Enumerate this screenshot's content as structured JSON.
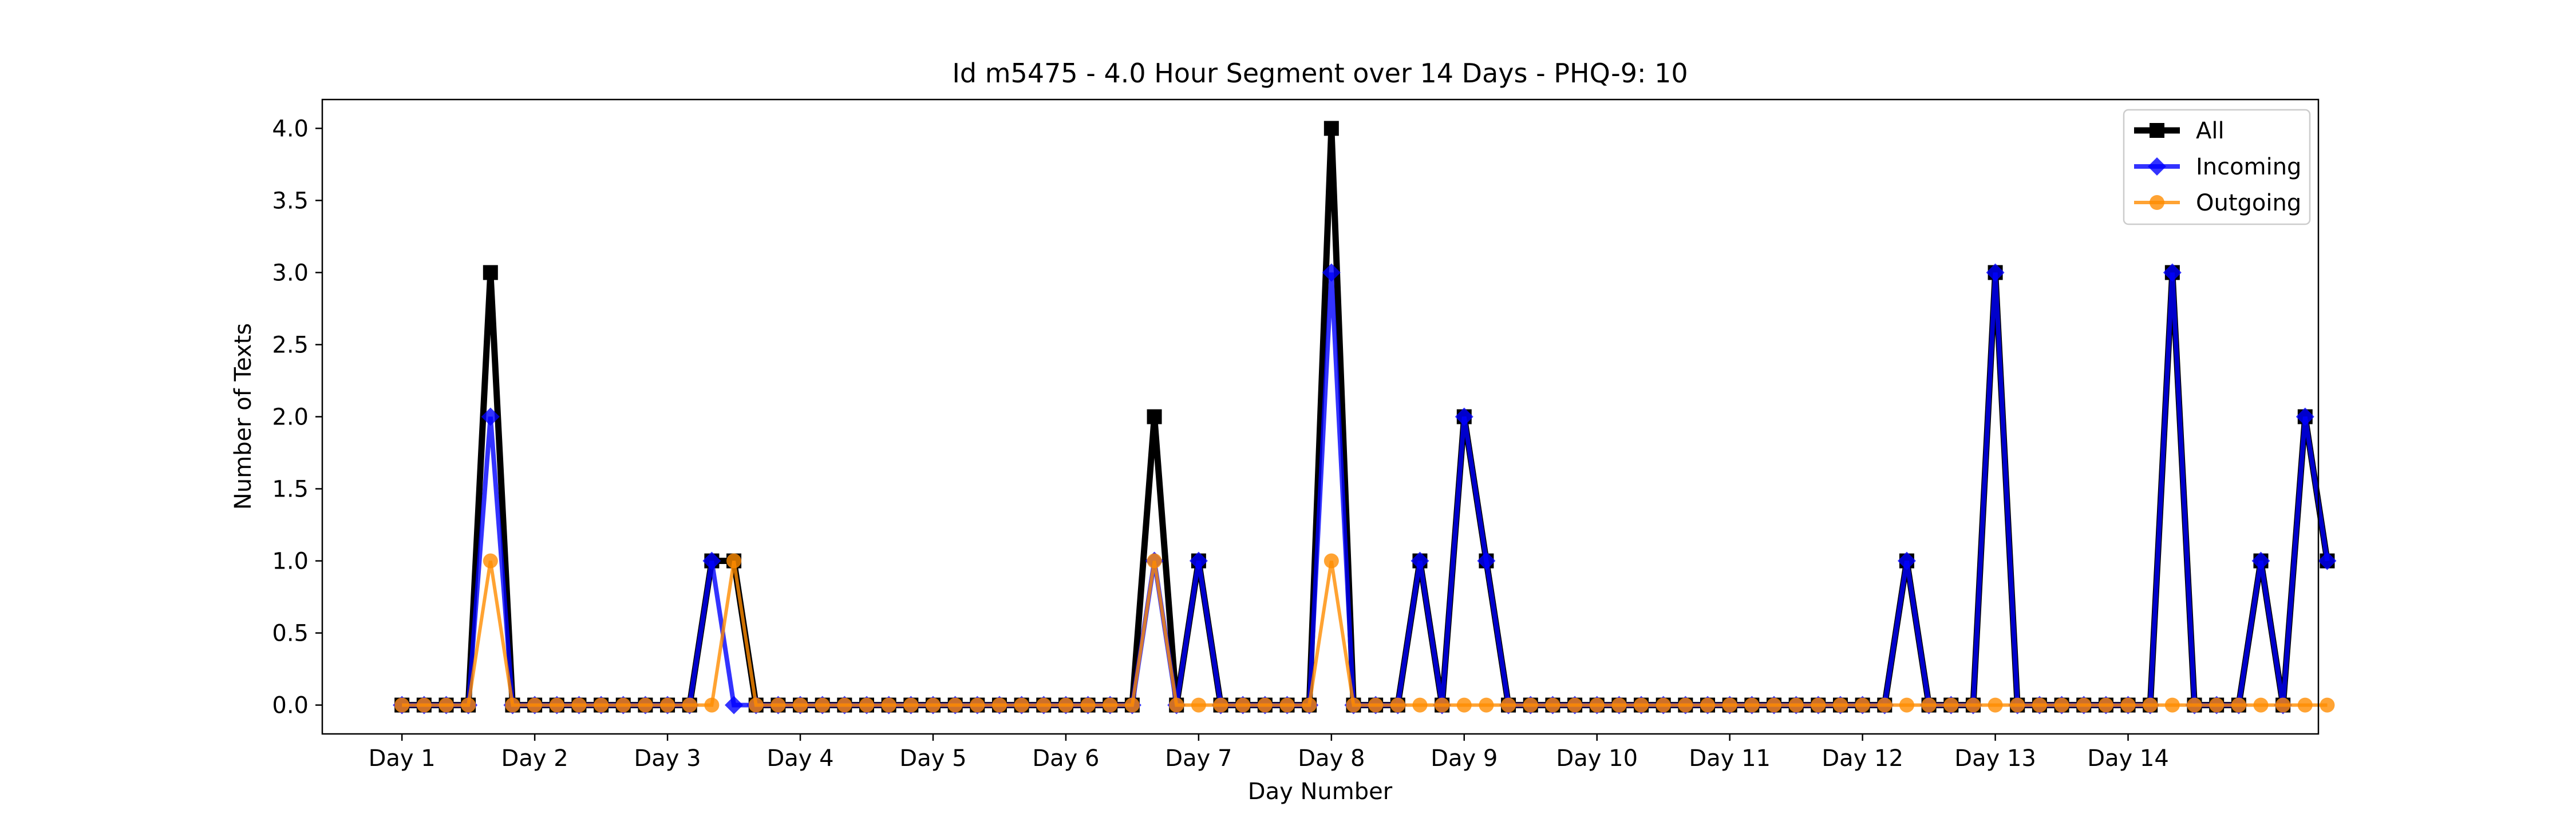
{
  "chart_data": {
    "type": "line",
    "title": "Id m5475 - 4.0 Hour Segment over 14 Days - PHQ-9: 10",
    "xlabel": "Day Number",
    "ylabel": "Number of Texts",
    "ylim": [
      -0.2,
      4.2
    ],
    "xlim": [
      -3.6,
      86.6
    ],
    "grid": false,
    "legend_position": "top-right",
    "x_tick_positions": [
      0,
      6,
      12,
      18,
      24,
      30,
      36,
      42,
      48,
      54,
      60,
      66,
      72,
      78
    ],
    "x_tick_labels": [
      "Day 1",
      "Day 2",
      "Day 3",
      "Day 4",
      "Day 5",
      "Day 6",
      "Day 7",
      "Day 8",
      "Day 9",
      "Day 10",
      "Day 11",
      "Day 12",
      "Day 13",
      "Day 14"
    ],
    "y_ticks": [
      0.0,
      0.5,
      1.0,
      1.5,
      2.0,
      2.5,
      3.0,
      3.5,
      4.0
    ],
    "y_tick_labels": [
      "0.0",
      "0.5",
      "1.0",
      "1.5",
      "2.0",
      "2.5",
      "3.0",
      "3.5",
      "4.0"
    ],
    "series": [
      {
        "name": "All",
        "color": "#000000",
        "marker": "square",
        "values": [
          0,
          0,
          0,
          0,
          3,
          0,
          0,
          0,
          0,
          0,
          0,
          0,
          0,
          0,
          1,
          1,
          0,
          0,
          0,
          0,
          0,
          0,
          0,
          0,
          0,
          0,
          0,
          0,
          0,
          0,
          0,
          0,
          0,
          0,
          2,
          0,
          1,
          0,
          0,
          0,
          0,
          0,
          4,
          0,
          0,
          0,
          1,
          0,
          2,
          1,
          0,
          0,
          0,
          0,
          0,
          0,
          0,
          0,
          0,
          0,
          0,
          0,
          0,
          0,
          0,
          0,
          0,
          0,
          1,
          0,
          0,
          0,
          3,
          0,
          0,
          0,
          0,
          0,
          0,
          0,
          3,
          0,
          0,
          0,
          1,
          0,
          2,
          1
        ]
      },
      {
        "name": "Incoming",
        "color": "#0000ff",
        "marker": "diamond",
        "values": [
          0,
          0,
          0,
          0,
          2,
          0,
          0,
          0,
          0,
          0,
          0,
          0,
          0,
          0,
          1,
          0,
          0,
          0,
          0,
          0,
          0,
          0,
          0,
          0,
          0,
          0,
          0,
          0,
          0,
          0,
          0,
          0,
          0,
          0,
          1,
          0,
          1,
          0,
          0,
          0,
          0,
          0,
          3,
          0,
          0,
          0,
          1,
          0,
          2,
          1,
          0,
          0,
          0,
          0,
          0,
          0,
          0,
          0,
          0,
          0,
          0,
          0,
          0,
          0,
          0,
          0,
          0,
          0,
          1,
          0,
          0,
          0,
          3,
          0,
          0,
          0,
          0,
          0,
          0,
          0,
          3,
          0,
          0,
          0,
          1,
          0,
          2,
          1
        ]
      },
      {
        "name": "Outgoing",
        "color": "#ff8c00",
        "marker": "circle",
        "values": [
          0,
          0,
          0,
          0,
          1,
          0,
          0,
          0,
          0,
          0,
          0,
          0,
          0,
          0,
          0,
          1,
          0,
          0,
          0,
          0,
          0,
          0,
          0,
          0,
          0,
          0,
          0,
          0,
          0,
          0,
          0,
          0,
          0,
          0,
          1,
          0,
          0,
          0,
          0,
          0,
          0,
          0,
          1,
          0,
          0,
          0,
          0,
          0,
          0,
          0,
          0,
          0,
          0,
          0,
          0,
          0,
          0,
          0,
          0,
          0,
          0,
          0,
          0,
          0,
          0,
          0,
          0,
          0,
          0,
          0,
          0,
          0,
          0,
          0,
          0,
          0,
          0,
          0,
          0,
          0,
          0,
          0,
          0,
          0,
          0,
          0,
          0,
          0
        ]
      }
    ]
  }
}
